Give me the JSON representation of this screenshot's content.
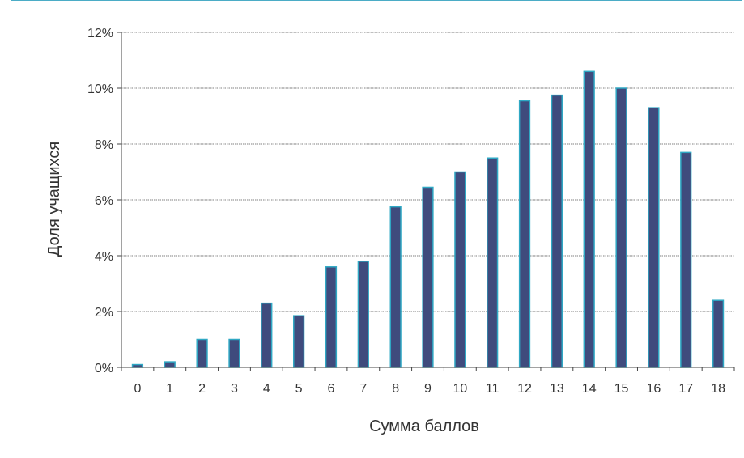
{
  "chart_data": {
    "type": "bar",
    "categories": [
      "0",
      "1",
      "2",
      "3",
      "4",
      "5",
      "6",
      "7",
      "8",
      "9",
      "10",
      "11",
      "12",
      "13",
      "14",
      "15",
      "16",
      "17",
      "18"
    ],
    "values": [
      0.1,
      0.2,
      1.0,
      1.0,
      2.3,
      1.85,
      3.6,
      3.8,
      5.75,
      6.45,
      7.0,
      7.5,
      9.55,
      9.75,
      10.6,
      10.0,
      9.3,
      7.7,
      2.4
    ],
    "xlabel": "Сумма баллов",
    "ylabel": "Доля учащихся",
    "ylim": [
      0,
      12
    ],
    "yticks": [
      0,
      2,
      4,
      6,
      8,
      10,
      12
    ],
    "ytick_labels": [
      "0%",
      "2%",
      "4%",
      "6%",
      "8%",
      "10%",
      "12%"
    ],
    "grid": true,
    "colors": {
      "bar_fill": "#3f4b7d",
      "bar_stroke": "#2fa8c4",
      "frame": "#4bacc6"
    }
  }
}
